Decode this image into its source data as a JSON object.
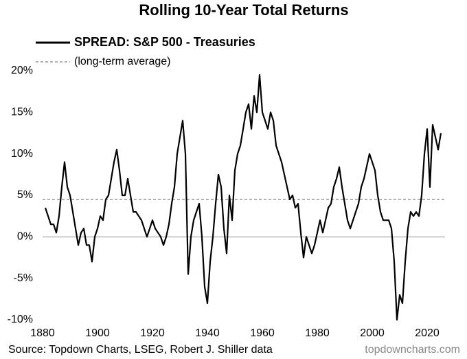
{
  "chart_data": {
    "type": "line",
    "title": "Rolling 10-Year Total Returns",
    "source": "Source: Topdown Charts, LSEG, Robert J. Shiller data",
    "watermark": "topdowncharts.com",
    "x": [
      1881,
      1882,
      1883,
      1884,
      1885,
      1886,
      1887,
      1888,
      1889,
      1890,
      1891,
      1892,
      1893,
      1894,
      1895,
      1896,
      1897,
      1898,
      1899,
      1900,
      1901,
      1902,
      1903,
      1904,
      1905,
      1906,
      1907,
      1908,
      1909,
      1910,
      1911,
      1912,
      1913,
      1914,
      1915,
      1916,
      1917,
      1918,
      1919,
      1920,
      1921,
      1922,
      1923,
      1924,
      1925,
      1926,
      1927,
      1928,
      1929,
      1930,
      1931,
      1932,
      1933,
      1934,
      1935,
      1936,
      1937,
      1938,
      1939,
      1940,
      1941,
      1942,
      1943,
      1944,
      1945,
      1946,
      1947,
      1948,
      1949,
      1950,
      1951,
      1952,
      1953,
      1954,
      1955,
      1956,
      1957,
      1958,
      1959,
      1960,
      1961,
      1962,
      1963,
      1964,
      1965,
      1966,
      1967,
      1968,
      1969,
      1970,
      1971,
      1972,
      1973,
      1974,
      1975,
      1976,
      1977,
      1978,
      1979,
      1980,
      1981,
      1982,
      1983,
      1984,
      1985,
      1986,
      1987,
      1988,
      1989,
      1990,
      1991,
      1992,
      1993,
      1994,
      1995,
      1996,
      1997,
      1998,
      1999,
      2000,
      2001,
      2002,
      2003,
      2004,
      2005,
      2006,
      2007,
      2008,
      2009,
      2010,
      2011,
      2012,
      2013,
      2014,
      2015,
      2016,
      2017,
      2018,
      2019,
      2020,
      2021,
      2022,
      2023,
      2024,
      2025
    ],
    "series": [
      {
        "name": "SPREAD: S&P 500 - Treasuries",
        "color": "#000000",
        "values": [
          3.5,
          2.5,
          1.5,
          1.5,
          0.5,
          2.5,
          6,
          9,
          6,
          5,
          3,
          1,
          -1,
          0.5,
          1,
          -1,
          -1,
          -3,
          0,
          1,
          2.5,
          2,
          4.5,
          5,
          7,
          9,
          10.5,
          8,
          5,
          5,
          7,
          5,
          3,
          3,
          2.5,
          2,
          1,
          0,
          1,
          2,
          1,
          0.5,
          0,
          -1,
          0,
          1.5,
          4,
          6,
          10,
          12,
          14,
          10,
          -4.5,
          0,
          2,
          3,
          4,
          0,
          -6,
          -8,
          -3,
          0,
          4,
          7.5,
          6,
          1,
          -2,
          5,
          2,
          8,
          10,
          11,
          13,
          15,
          16,
          13,
          17,
          15,
          19.5,
          15,
          14,
          13,
          15,
          14,
          11,
          10,
          9,
          7.5,
          6,
          4.5,
          5,
          3.5,
          4,
          0.5,
          -2.5,
          0,
          -1,
          -2,
          -1,
          0.5,
          2,
          0.5,
          2,
          3.5,
          4,
          6,
          7,
          8.4,
          6,
          4,
          2,
          1,
          2,
          3,
          4,
          6,
          7,
          8.5,
          10,
          9,
          8,
          5,
          3,
          2,
          2,
          2,
          1,
          -3,
          -10,
          -7,
          -8,
          -3,
          1,
          3,
          2.5,
          3,
          2.5,
          5,
          10,
          13,
          6,
          13.5,
          12,
          10.5,
          12.5
        ]
      }
    ],
    "average": {
      "label": "(long-term average)",
      "value": 4.5,
      "color": "#999999"
    },
    "zero_line": true,
    "xlim": [
      1880,
      2026.5
    ],
    "xticks": [
      1880,
      1900,
      1920,
      1940,
      1960,
      1980,
      2000,
      2020
    ],
    "ylim": [
      -10,
      20
    ],
    "yticks": [
      {
        "value": -10,
        "label": "-10%"
      },
      {
        "value": -5,
        "label": "-5%"
      },
      {
        "value": 0,
        "label": "0%"
      },
      {
        "value": 5,
        "label": "5%"
      },
      {
        "value": 10,
        "label": "10%"
      },
      {
        "value": 15,
        "label": "15%"
      },
      {
        "value": 20,
        "label": "20%"
      }
    ]
  }
}
